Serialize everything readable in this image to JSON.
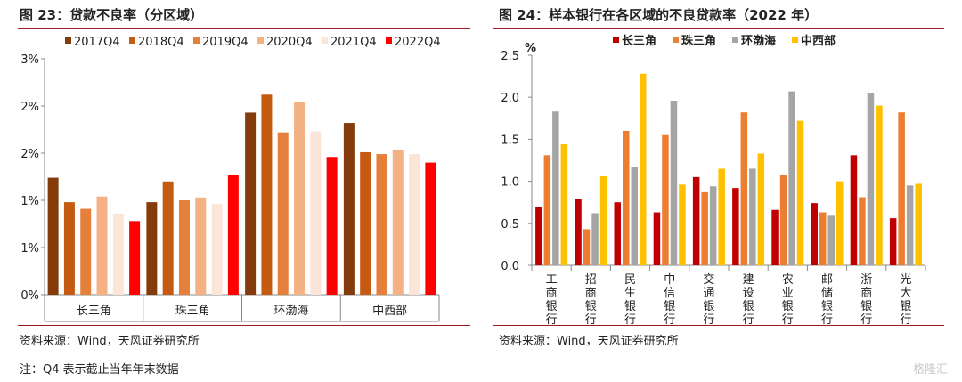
{
  "left": {
    "title": "图 23：贷款不良率（分区域）",
    "source": "资料来源：Wind，天风证券研究所",
    "note": "注：Q4 表示截止当年年末数据"
  },
  "right": {
    "title": "图 24：样本银行在各区域的不良贷款率（2022 年）",
    "source": "资料来源：Wind，天风证券研究所"
  },
  "watermark": "格隆汇",
  "chart_data": [
    {
      "type": "bar",
      "title": "贷款不良率（分区域）",
      "categories": [
        "长三角",
        "珠三角",
        "环渤海",
        "中西部"
      ],
      "y_tick_labels": [
        "0%",
        "1%",
        "1%",
        "2%",
        "2%",
        "3%"
      ],
      "ylim": [
        0,
        2.5
      ],
      "legend_position": "top",
      "grid": false,
      "series": [
        {
          "name": "2017Q4",
          "color": "#843c0c",
          "values": [
            1.24,
            0.98,
            1.93,
            1.82
          ]
        },
        {
          "name": "2018Q4",
          "color": "#c55a11",
          "values": [
            0.98,
            1.2,
            2.12,
            1.51
          ]
        },
        {
          "name": "2019Q4",
          "color": "#e4803a",
          "values": [
            0.91,
            1.0,
            1.72,
            1.49
          ]
        },
        {
          "name": "2020Q4",
          "color": "#f4b183",
          "values": [
            1.04,
            1.03,
            2.04,
            1.53
          ]
        },
        {
          "name": "2021Q4",
          "color": "#fbe5d6",
          "values": [
            0.86,
            0.96,
            1.73,
            1.49
          ]
        },
        {
          "name": "2022Q4",
          "color": "#ff0000",
          "values": [
            0.78,
            1.27,
            1.46,
            1.4
          ]
        }
      ]
    },
    {
      "type": "bar",
      "title": "样本银行在各区域的不良贷款率（2022 年）",
      "ylabel": "%",
      "categories": [
        "工商银行",
        "招商银行",
        "民生银行",
        "中信银行",
        "交通银行",
        "建设银行",
        "农业银行",
        "邮储银行",
        "浙商银行",
        "光大银行"
      ],
      "ylim": [
        0,
        2.5
      ],
      "y_ticks": [
        "0.0",
        "0.5",
        "1.0",
        "1.5",
        "2.0",
        "2.5"
      ],
      "legend_position": "top",
      "grid": false,
      "series": [
        {
          "name": "长三角",
          "color": "#c00000",
          "values": [
            0.69,
            0.79,
            0.75,
            0.63,
            1.05,
            0.92,
            0.66,
            0.74,
            1.31,
            0.56
          ]
        },
        {
          "name": "珠三角",
          "color": "#ed7d31",
          "values": [
            1.31,
            0.43,
            1.6,
            1.55,
            0.87,
            1.82,
            1.07,
            0.63,
            0.81,
            1.82
          ]
        },
        {
          "name": "环渤海",
          "color": "#a5a5a5",
          "values": [
            1.83,
            0.62,
            1.17,
            1.96,
            0.94,
            1.15,
            2.07,
            0.59,
            2.05,
            0.95
          ]
        },
        {
          "name": "中西部",
          "color": "#ffc000",
          "values": [
            1.44,
            1.06,
            2.28,
            0.96,
            1.15,
            1.33,
            1.72,
            1.0,
            1.9,
            0.97
          ]
        }
      ]
    }
  ]
}
